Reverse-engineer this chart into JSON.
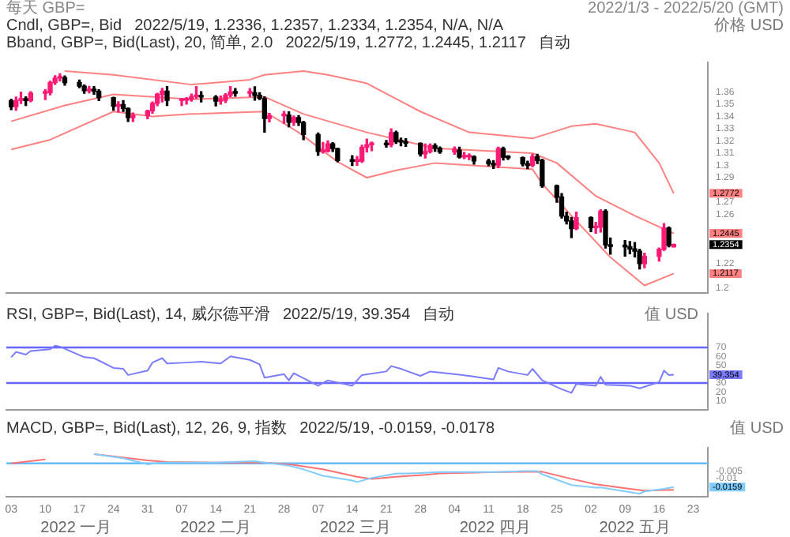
{
  "chart_data": [
    {
      "type": "candlestick",
      "title": "每天 GBP=",
      "subtitle": "2022/1/3 - 2022/5/20 (GMT)",
      "ylabel": "价格 USD",
      "annotations": [
        "Cndl, GBP=, Bid",
        "2022/5/19, 1.2336, 1.2357, 1.2334, 1.2354, N/A, N/A",
        "Bband, GBP=, Bid(Last), 20, 简单, 2.0",
        "2022/5/19, 1.2772, 1.2445, 1.2117",
        "自动"
      ],
      "x": [
        "2022-01-03",
        "2022-01-04",
        "2022-01-05",
        "2022-01-06",
        "2022-01-07",
        "2022-01-10",
        "2022-01-11",
        "2022-01-12",
        "2022-01-13",
        "2022-01-14",
        "2022-01-17",
        "2022-01-18",
        "2022-01-19",
        "2022-01-20",
        "2022-01-21",
        "2022-01-24",
        "2022-01-25",
        "2022-01-26",
        "2022-01-27",
        "2022-01-28",
        "2022-01-31",
        "2022-02-01",
        "2022-02-02",
        "2022-02-03",
        "2022-02-04",
        "2022-02-07",
        "2022-02-08",
        "2022-02-09",
        "2022-02-10",
        "2022-02-11",
        "2022-02-14",
        "2022-02-15",
        "2022-02-16",
        "2022-02-17",
        "2022-02-18",
        "2022-02-21",
        "2022-02-22",
        "2022-02-23",
        "2022-02-24",
        "2022-02-25",
        "2022-02-28",
        "2022-03-01",
        "2022-03-02",
        "2022-03-03",
        "2022-03-04",
        "2022-03-07",
        "2022-03-08",
        "2022-03-09",
        "2022-03-10",
        "2022-03-11",
        "2022-03-14",
        "2022-03-15",
        "2022-03-16",
        "2022-03-17",
        "2022-03-18",
        "2022-03-21",
        "2022-03-22",
        "2022-03-23",
        "2022-03-24",
        "2022-03-25",
        "2022-03-28",
        "2022-03-29",
        "2022-03-30",
        "2022-03-31",
        "2022-04-01",
        "2022-04-04",
        "2022-04-05",
        "2022-04-06",
        "2022-04-07",
        "2022-04-08",
        "2022-04-11",
        "2022-04-12",
        "2022-04-13",
        "2022-04-14",
        "2022-04-15",
        "2022-04-18",
        "2022-04-19",
        "2022-04-20",
        "2022-04-21",
        "2022-04-22",
        "2022-04-25",
        "2022-04-26",
        "2022-04-27",
        "2022-04-28",
        "2022-04-29",
        "2022-05-02",
        "2022-05-03",
        "2022-05-04",
        "2022-05-05",
        "2022-05-06",
        "2022-05-09",
        "2022-05-10",
        "2022-05-11",
        "2022-05-12",
        "2022-05-13",
        "2022-05-16",
        "2022-05-17",
        "2022-05-18",
        "2022-05-19"
      ],
      "ohlc": [
        [
          1.3527,
          1.354,
          1.3455,
          1.3479
        ],
        [
          1.3479,
          1.3558,
          1.3451,
          1.3531
        ],
        [
          1.3531,
          1.3598,
          1.3506,
          1.3546
        ],
        [
          1.3546,
          1.356,
          1.349,
          1.3529
        ],
        [
          1.3529,
          1.3601,
          1.352,
          1.359
        ],
        [
          1.359,
          1.362,
          1.3537,
          1.3594
        ],
        [
          1.3594,
          1.3687,
          1.3577,
          1.3677
        ],
        [
          1.3677,
          1.3732,
          1.3661,
          1.3713
        ],
        [
          1.3713,
          1.3749,
          1.369,
          1.3716
        ],
        [
          1.3716,
          1.3731,
          1.3655,
          1.3677
        ],
        [
          1.3677,
          1.3697,
          1.3635,
          1.3647
        ],
        [
          1.3647,
          1.3656,
          1.359,
          1.361
        ],
        [
          1.361,
          1.3646,
          1.3592,
          1.3622
        ],
        [
          1.3622,
          1.3644,
          1.3581,
          1.3605
        ],
        [
          1.3605,
          1.3618,
          1.3529,
          1.3554
        ],
        [
          1.3554,
          1.3556,
          1.345,
          1.3483
        ],
        [
          1.3483,
          1.352,
          1.3436,
          1.3497
        ],
        [
          1.3497,
          1.3529,
          1.3441,
          1.3465
        ],
        [
          1.3465,
          1.347,
          1.3358,
          1.3391
        ],
        [
          1.3391,
          1.3428,
          1.3359,
          1.3408
        ],
        [
          1.3408,
          1.345,
          1.3381,
          1.3446
        ],
        [
          1.3446,
          1.3518,
          1.3427,
          1.3507
        ],
        [
          1.3507,
          1.3589,
          1.3488,
          1.358
        ],
        [
          1.358,
          1.3629,
          1.3518,
          1.3606
        ],
        [
          1.3606,
          1.3643,
          1.3489,
          1.3531
        ],
        [
          1.3531,
          1.3546,
          1.349,
          1.3533
        ],
        [
          1.3533,
          1.3554,
          1.3501,
          1.3541
        ],
        [
          1.3541,
          1.3582,
          1.3525,
          1.3562
        ],
        [
          1.3562,
          1.3644,
          1.3547,
          1.357
        ],
        [
          1.357,
          1.3602,
          1.3519,
          1.3559
        ],
        [
          1.3559,
          1.357,
          1.3486,
          1.3525
        ],
        [
          1.3525,
          1.3567,
          1.3501,
          1.3533
        ],
        [
          1.3533,
          1.3586,
          1.3514,
          1.3575
        ],
        [
          1.3575,
          1.3643,
          1.356,
          1.36
        ],
        [
          1.36,
          1.3628,
          1.3565,
          1.359
        ],
        [
          1.359,
          1.3627,
          1.3563,
          1.3593
        ],
        [
          1.3593,
          1.3642,
          1.3533,
          1.3572
        ],
        [
          1.3572,
          1.3594,
          1.3538,
          1.3549
        ],
        [
          1.3545,
          1.356,
          1.3272,
          1.3383
        ],
        [
          1.3383,
          1.3424,
          1.3355,
          1.3406
        ],
        [
          1.3406,
          1.344,
          1.3345,
          1.3411
        ],
        [
          1.3411,
          1.3437,
          1.3316,
          1.3353
        ],
        [
          1.3353,
          1.3404,
          1.3326,
          1.3391
        ],
        [
          1.3391,
          1.3407,
          1.3327,
          1.3351
        ],
        [
          1.3351,
          1.336,
          1.3211,
          1.3252
        ],
        [
          1.3252,
          1.3265,
          1.3083,
          1.3113
        ],
        [
          1.3113,
          1.3187,
          1.3101,
          1.3117
        ],
        [
          1.3117,
          1.32,
          1.311,
          1.3177
        ],
        [
          1.3177,
          1.3186,
          1.3114,
          1.3138
        ],
        [
          1.3138,
          1.314,
          1.303,
          1.3039
        ],
        [
          1.3039,
          1.308,
          1.3,
          1.3034
        ],
        [
          1.3034,
          1.3073,
          1.3001,
          1.3035
        ],
        [
          1.3035,
          1.3165,
          1.3025,
          1.3147
        ],
        [
          1.3147,
          1.3215,
          1.311,
          1.3169
        ],
        [
          1.3169,
          1.319,
          1.312,
          1.3179
        ],
        [
          1.3179,
          1.3203,
          1.315,
          1.3168
        ],
        [
          1.3168,
          1.3298,
          1.3152,
          1.3268
        ],
        [
          1.3268,
          1.328,
          1.318,
          1.3193
        ],
        [
          1.3193,
          1.3223,
          1.316,
          1.3191
        ],
        [
          1.3191,
          1.3218,
          1.3155,
          1.3181
        ],
        [
          1.3181,
          1.3182,
          1.3076,
          1.3094
        ],
        [
          1.3094,
          1.3174,
          1.306,
          1.3114
        ],
        [
          1.3114,
          1.3175,
          1.3102,
          1.3161
        ],
        [
          1.3161,
          1.3177,
          1.3116,
          1.314
        ],
        [
          1.314,
          1.315,
          1.31,
          1.311
        ],
        [
          1.311,
          1.315,
          1.3092,
          1.3135
        ],
        [
          1.3125,
          1.3149,
          1.306,
          1.3068
        ],
        [
          1.3068,
          1.3107,
          1.3055,
          1.307
        ],
        [
          1.307,
          1.3094,
          1.3048,
          1.3071
        ],
        [
          1.3071,
          1.3078,
          1.301,
          1.3036
        ],
        [
          1.3036,
          1.305,
          1.2998,
          1.3014
        ],
        [
          1.3014,
          1.3039,
          1.2975,
          1.3003
        ],
        [
          1.3003,
          1.3149,
          1.2982,
          1.3138
        ],
        [
          1.3138,
          1.3148,
          1.3044,
          1.3067
        ],
        [
          1.3067,
          1.308,
          1.305,
          1.3063
        ],
        [
          1.3063,
          1.3068,
          1.2996,
          1.3012
        ],
        [
          1.3012,
          1.3034,
          1.2974,
          1.3
        ],
        [
          1.3,
          1.309,
          1.299,
          1.3071
        ],
        [
          1.3071,
          1.309,
          1.3015,
          1.3042
        ],
        [
          1.3042,
          1.305,
          1.2822,
          1.2834
        ],
        [
          1.2834,
          1.284,
          1.27,
          1.2742
        ],
        [
          1.2742,
          1.277,
          1.257,
          1.2586
        ],
        [
          1.2586,
          1.2618,
          1.2523,
          1.2547
        ],
        [
          1.2547,
          1.2575,
          1.2411,
          1.2484
        ],
        [
          1.2484,
          1.2618,
          1.2476,
          1.2574
        ],
        [
          1.2574,
          1.258,
          1.246,
          1.2491
        ],
        [
          1.2491,
          1.2534,
          1.2447,
          1.2497
        ],
        [
          1.2497,
          1.2638,
          1.2456,
          1.2626
        ],
        [
          1.2626,
          1.2638,
          1.2325,
          1.2352
        ],
        [
          1.2352,
          1.2407,
          1.2276,
          1.2339
        ],
        [
          1.2339,
          1.2386,
          1.226,
          1.2336
        ],
        [
          1.2336,
          1.2378,
          1.2279,
          1.2318
        ],
        [
          1.2318,
          1.237,
          1.2253,
          1.23
        ],
        [
          1.23,
          1.2315,
          1.2155,
          1.2198
        ],
        [
          1.2198,
          1.2283,
          1.2165,
          1.2258
        ],
        [
          1.2258,
          1.2325,
          1.222,
          1.2315
        ],
        [
          1.2315,
          1.2525,
          1.2306,
          1.2489
        ],
        [
          1.2489,
          1.2497,
          1.2336,
          1.2346
        ],
        [
          1.2336,
          1.2357,
          1.2334,
          1.2354
        ]
      ],
      "colors": [
        "#000000",
        "#ff1a75",
        "#ff1a75",
        "#000000",
        "#ff1a75",
        "#ff1a75",
        "#ff1a75",
        "#ff1a75",
        "#ff1a75",
        "#000000",
        "#000000",
        "#000000",
        "#ff1a75",
        "#000000",
        "#000000",
        "#000000",
        "#ff1a75",
        "#000000",
        "#000000",
        "#ff1a75",
        "#ff1a75",
        "#ff1a75",
        "#ff1a75",
        "#ff1a75",
        "#000000",
        "#ff1a75",
        "#ff1a75",
        "#ff1a75",
        "#ff1a75",
        "#000000",
        "#000000",
        "#ff1a75",
        "#ff1a75",
        "#ff1a75",
        "#000000",
        "#ff1a75",
        "#000000",
        "#000000",
        "#000000",
        "#ff1a75",
        "#ff1a75",
        "#000000",
        "#ff1a75",
        "#000000",
        "#000000",
        "#000000",
        "#ff1a75",
        "#ff1a75",
        "#000000",
        "#000000",
        "#000000",
        "#ff1a75",
        "#ff1a75",
        "#ff1a75",
        "#ff1a75",
        "#000000",
        "#ff1a75",
        "#000000",
        "#000000",
        "#000000",
        "#000000",
        "#ff1a75",
        "#ff1a75",
        "#000000",
        "#000000",
        "#ff1a75",
        "#000000",
        "#ff1a75",
        "#ff1a75",
        "#000000",
        "#000000",
        "#000000",
        "#ff1a75",
        "#000000",
        "#000000",
        "#000000",
        "#000000",
        "#ff1a75",
        "#000000",
        "#000000",
        "#000000",
        "#000000",
        "#000000",
        "#000000",
        "#ff1a75",
        "#000000",
        "#ff1a75",
        "#ff1a75",
        "#000000",
        "#000000",
        "#000000",
        "#000000",
        "#000000",
        "#000000",
        "#ff1a75",
        "#ff1a75",
        "#ff1a75",
        "#000000",
        "#ff1a75"
      ],
      "series": [
        {
          "type": "line",
          "color": "#ff8080",
          "x": [
            "2022-01-14",
            "2022-01-24",
            "2022-02-09",
            "2022-02-21",
            "2022-02-24",
            "2022-03-04",
            "2022-03-09",
            "2022-03-17",
            "2022-03-28",
            "2022-04-07",
            "2022-04-20",
            "2022-04-28",
            "2022-05-03",
            "2022-05-11",
            "2022-05-16",
            "2022-05-19"
          ],
          "values": [
            1.377,
            1.374,
            1.366,
            1.37,
            1.374,
            1.377,
            1.374,
            1.367,
            1.344,
            1.327,
            1.322,
            1.332,
            1.334,
            1.327,
            1.302,
            1.2772
          ]
        },
        {
          "type": "line",
          "color": "#ff8080",
          "x": [
            "2022-01-03",
            "2022-01-14",
            "2022-01-24",
            "2022-02-09",
            "2022-02-24",
            "2022-03-04",
            "2022-03-17",
            "2022-03-31",
            "2022-04-20",
            "2022-04-25",
            "2022-05-03",
            "2022-05-11",
            "2022-05-19"
          ],
          "values": [
            1.336,
            1.349,
            1.358,
            1.354,
            1.356,
            1.342,
            1.327,
            1.314,
            1.31,
            1.302,
            1.275,
            1.259,
            1.2445
          ]
        },
        {
          "type": "line",
          "color": "#ff8080",
          "x": [
            "2022-01-03",
            "2022-01-11",
            "2022-01-24",
            "2022-02-01",
            "2022-02-09",
            "2022-02-24",
            "2022-03-03",
            "2022-03-11",
            "2022-03-17",
            "2022-03-23",
            "2022-03-31",
            "2022-04-20",
            "2022-04-22",
            "2022-04-28",
            "2022-05-06",
            "2022-05-13",
            "2022-05-19"
          ],
          "values": [
            1.313,
            1.321,
            1.344,
            1.34,
            1.342,
            1.344,
            1.327,
            1.303,
            1.29,
            1.296,
            1.302,
            1.297,
            1.285,
            1.259,
            1.225,
            1.202,
            1.2117
          ]
        }
      ],
      "xlim": [
        "2022-01-02",
        "2022-05-26"
      ],
      "ylim": [
        1.196,
        1.384
      ],
      "yticks": [
        1.2,
        1.2117,
        1.22,
        1.2354,
        1.2445,
        1.26,
        1.27,
        1.2772,
        1.29,
        1.3,
        1.31,
        1.32,
        1.33,
        1.34,
        1.35,
        1.36
      ],
      "tick_labels": "y"
    },
    {
      "type": "line",
      "ylabel": "值 USD",
      "annotations": [
        "RSI, GBP=, Bid(Last), 14, 威尔德平滑",
        "2022/5/19, 39.354",
        "自动"
      ],
      "series": [
        {
          "color": "#7b7bff",
          "x": [
            "2022-01-03",
            "2022-01-04",
            "2022-01-06",
            "2022-01-07",
            "2022-01-11",
            "2022-01-12",
            "2022-01-13",
            "2022-01-18",
            "2022-01-20",
            "2022-01-24",
            "2022-01-26",
            "2022-01-27",
            "2022-01-31",
            "2022-02-01",
            "2022-02-03",
            "2022-02-04",
            "2022-02-08",
            "2022-02-11",
            "2022-02-15",
            "2022-02-17",
            "2022-02-21",
            "2022-02-23",
            "2022-02-24",
            "2022-02-28",
            "2022-03-01",
            "2022-03-02",
            "2022-03-07",
            "2022-03-09",
            "2022-03-14",
            "2022-03-16",
            "2022-03-21",
            "2022-03-22",
            "2022-03-24",
            "2022-03-28",
            "2022-03-30",
            "2022-04-04",
            "2022-04-07",
            "2022-04-12",
            "2022-04-13",
            "2022-04-15",
            "2022-04-19",
            "2022-04-20",
            "2022-04-22",
            "2022-04-26",
            "2022-04-28",
            "2022-04-29",
            "2022-05-03",
            "2022-05-04",
            "2022-05-05",
            "2022-05-10",
            "2022-05-12",
            "2022-05-16",
            "2022-05-17",
            "2022-05-18",
            "2022-05-19"
          ],
          "values": [
            59,
            65,
            62,
            66,
            68,
            72,
            71,
            59,
            58,
            47,
            46,
            39,
            44,
            53,
            58,
            52,
            53,
            54,
            52,
            60,
            56,
            51,
            36,
            40,
            33,
            41,
            27,
            33,
            27,
            39,
            43,
            49,
            46,
            38,
            43,
            40,
            38,
            34,
            47,
            43,
            39,
            46,
            33,
            23,
            19,
            29,
            27,
            37,
            28,
            27,
            24,
            31,
            44,
            39,
            39.354
          ]
        }
      ],
      "ref_lines": [
        {
          "axis": "y",
          "value": 70,
          "color": "#6666ff"
        },
        {
          "axis": "y",
          "value": 30,
          "color": "#6666ff"
        }
      ],
      "xlim": [
        "2022-01-02",
        "2022-05-26"
      ],
      "ylim": [
        0,
        108
      ],
      "yticks": [
        10,
        20,
        30,
        39.354,
        50,
        60,
        70
      ],
      "tick_labels": "y"
    },
    {
      "type": "line",
      "ylabel": "值 USD",
      "annotations": [
        "MACD, GBP=, Bid(Last), 12, 26, 9, 指数",
        "2022/5/19, -0.0159, -0.0178",
        "2022 一月",
        "2022 二月",
        "2022 三月",
        "2022 四月",
        "2022 五月"
      ],
      "series": [
        {
          "color": "#80ccff",
          "x": [
            "2022-01-20",
            "2022-01-26",
            "2022-01-31",
            "2022-02-03",
            "2022-02-08",
            "2022-02-14",
            "2022-02-17",
            "2022-02-22",
            "2022-02-24",
            "2022-03-01",
            "2022-03-04",
            "2022-03-08",
            "2022-03-14",
            "2022-03-15",
            "2022-03-18",
            "2022-03-23",
            "2022-03-28",
            "2022-04-01",
            "2022-04-08",
            "2022-04-13",
            "2022-04-18",
            "2022-04-21",
            "2022-04-22",
            "2022-04-28",
            "2022-05-03",
            "2022-05-04",
            "2022-05-09",
            "2022-05-12",
            "2022-05-13",
            "2022-05-17",
            "2022-05-19"
          ],
          "values": [
            0.0063,
            0.0035,
            -0.0006,
            0.0006,
            0.0006,
            0.0006,
            0.001,
            0.0015,
            0.0006,
            -0.0015,
            -0.004,
            -0.0083,
            -0.0115,
            -0.0125,
            -0.0098,
            -0.0069,
            -0.0065,
            -0.0058,
            -0.0058,
            -0.0058,
            -0.0052,
            -0.0052,
            -0.0073,
            -0.0146,
            -0.0163,
            -0.0161,
            -0.0188,
            -0.0204,
            -0.0188,
            -0.0171,
            -0.0159
          ]
        },
        {
          "color": "#ff7070",
          "x": [
            "2022-01-03",
            "2022-01-10",
            "2022-01-14",
            "2022-01-20",
            "2022-01-31",
            "2022-02-04",
            "2022-02-15",
            "2022-02-24",
            "2022-03-02",
            "2022-03-08",
            "2022-03-15",
            "2022-03-18",
            "2022-03-23",
            "2022-03-29",
            "2022-04-01",
            "2022-04-13",
            "2022-04-22",
            "2022-04-28",
            "2022-05-03",
            "2022-05-09",
            "2022-05-13",
            "2022-05-19"
          ],
          "values": [
            0,
            0.0027,
            null,
            0.0063,
            0.002,
            0.001,
            0.0006,
            0.0006,
            -0.001,
            -0.004,
            -0.009,
            -0.0104,
            -0.009,
            -0.0077,
            -0.0067,
            -0.0058,
            -0.0056,
            -0.0104,
            -0.014,
            -0.0167,
            -0.0183,
            -0.0178
          ]
        }
      ],
      "ref_lines": [
        {
          "axis": "y",
          "value": 0,
          "color": "#66bbff"
        }
      ],
      "xlim": [
        "2022-01-02",
        "2022-05-26"
      ],
      "xticks": [
        {
          "value": "2022-01-03",
          "label": "03"
        },
        {
          "value": "2022-01-10",
          "label": "10"
        },
        {
          "value": "2022-01-17",
          "label": "17"
        },
        {
          "value": "2022-01-24",
          "label": "24"
        },
        {
          "value": "2022-01-31",
          "label": "31"
        },
        {
          "value": "2022-02-07",
          "label": "07"
        },
        {
          "value": "2022-02-14",
          "label": "14"
        },
        {
          "value": "2022-02-21",
          "label": "21"
        },
        {
          "value": "2022-02-28",
          "label": "28"
        },
        {
          "value": "2022-03-07",
          "label": "07"
        },
        {
          "value": "2022-03-14",
          "label": "14"
        },
        {
          "value": "2022-03-21",
          "label": "21"
        },
        {
          "value": "2022-03-28",
          "label": "28"
        },
        {
          "value": "2022-04-04",
          "label": "04"
        },
        {
          "value": "2022-04-11",
          "label": "11"
        },
        {
          "value": "2022-04-18",
          "label": "18"
        },
        {
          "value": "2022-04-25",
          "label": "25"
        },
        {
          "value": "2022-05-02",
          "label": "02"
        },
        {
          "value": "2022-05-09",
          "label": "09"
        },
        {
          "value": "2022-05-16",
          "label": "16"
        },
        {
          "value": "2022-05-23",
          "label": "23"
        }
      ],
      "ylim": [
        -0.0225,
        0.0104
      ],
      "yticks": [
        -0.0159,
        -0.01,
        -0.005
      ]
    }
  ]
}
